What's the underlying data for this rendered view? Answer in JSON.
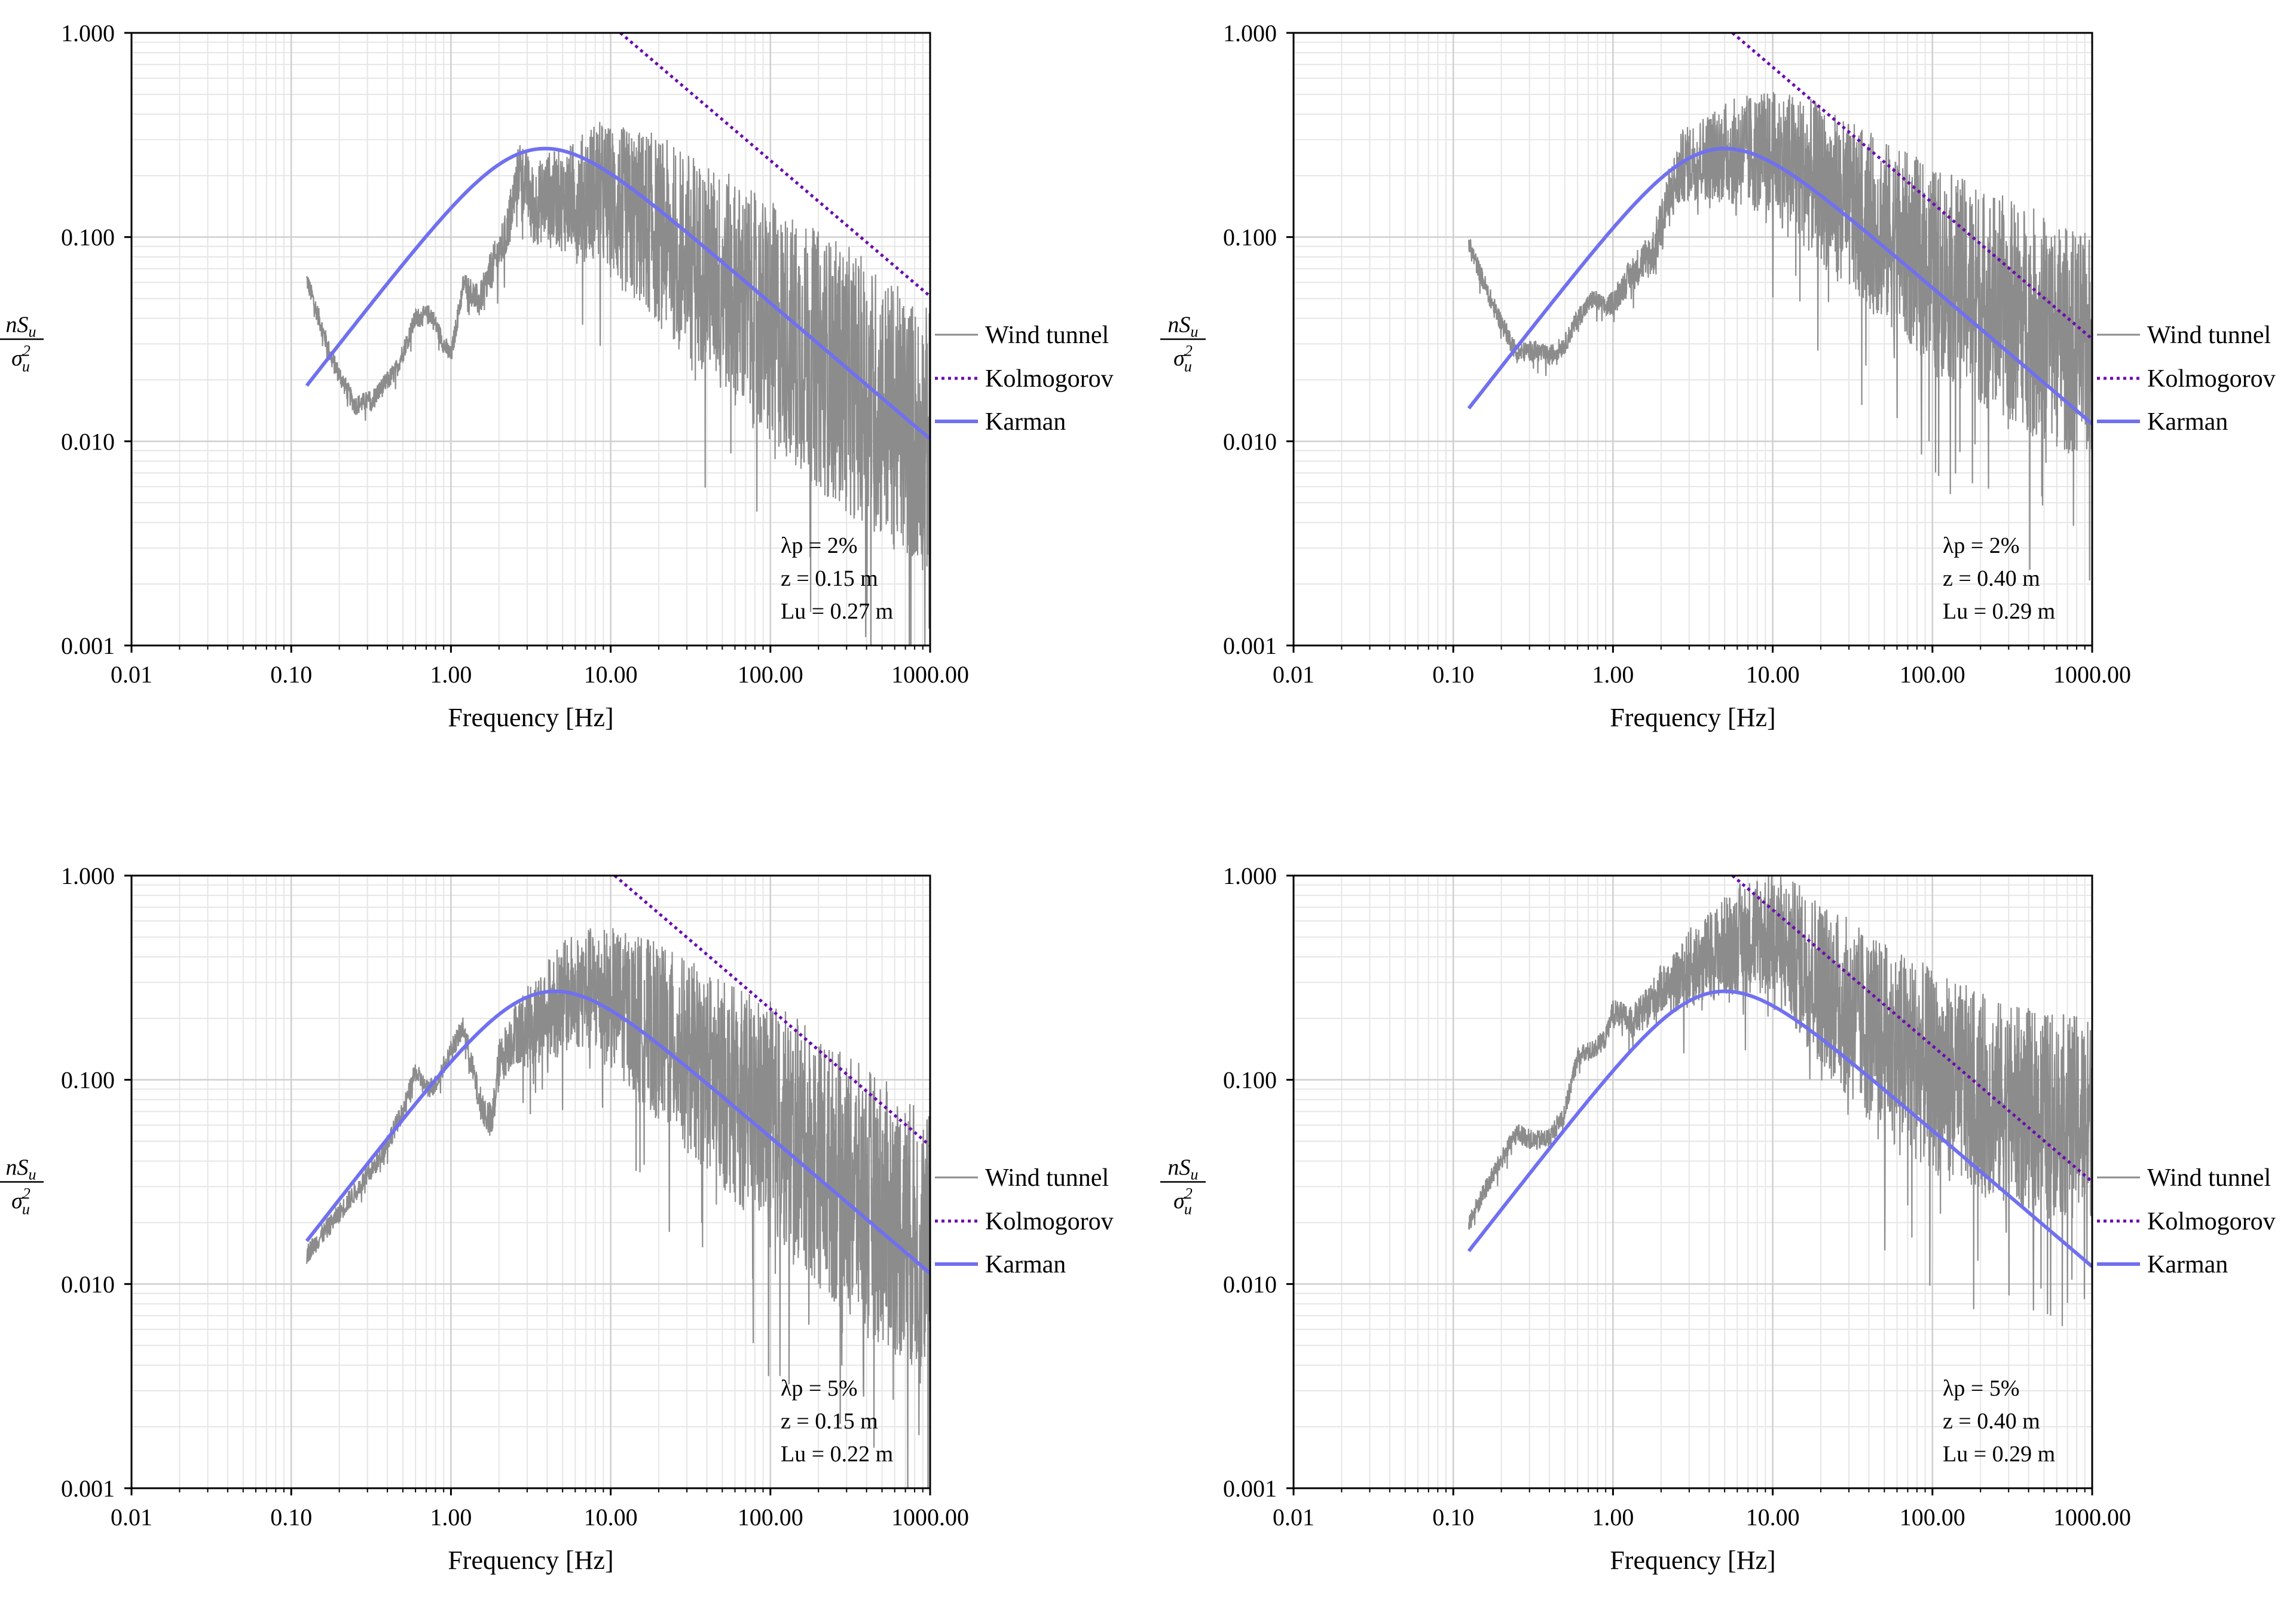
{
  "figure": {
    "colors": {
      "wind_tunnel": "#8c8c8c",
      "kolmogorov": "#6a0dad",
      "karman": "#7070f0",
      "grid": "#e6e6e6",
      "axis": "#000000"
    },
    "shared": {
      "xlabel": "Frequency [Hz]",
      "ylabel": {
        "numerator_n": "n",
        "numerator_S": "S",
        "numerator_sub": "u",
        "denominator_sigma": "σ",
        "denominator_sup": "2",
        "denominator_sub": "u"
      },
      "x_ticks": [
        "0.01",
        "0.10",
        "1.00",
        "10.00",
        "100.00",
        "1000.00"
      ],
      "y_ticks": [
        "0.001",
        "0.010",
        "0.100",
        "1.000"
      ],
      "legend": [
        "Wind tunnel",
        "Kolmogorov",
        "Karman"
      ]
    }
  },
  "chart_data": [
    {
      "type": "line",
      "scale": "log-log",
      "xlabel": "Frequency [Hz]",
      "ylabel": "nSu/σu²",
      "xlim": [
        0.01,
        1000
      ],
      "ylim": [
        0.001,
        1
      ],
      "annotation": [
        "λp = 2%",
        "z = 0.15 m",
        "Lu = 0.27 m"
      ],
      "legend_position": "right",
      "series": [
        {
          "name": "Wind tunnel",
          "style": "solid-grey-noisy",
          "x": [
            0.125,
            0.18,
            0.25,
            0.32,
            0.45,
            0.6,
            0.75,
            0.9,
            1.0,
            1.2,
            1.5,
            1.8,
            2.2,
            2.7,
            3.3,
            4,
            5,
            6.5,
            8,
            10,
            13,
            17,
            22,
            30,
            40,
            55,
            75,
            100,
            150,
            200,
            300,
            450,
            600,
            800,
            1000
          ],
          "y": [
            0.062,
            0.025,
            0.015,
            0.016,
            0.022,
            0.04,
            0.042,
            0.03,
            0.026,
            0.06,
            0.048,
            0.07,
            0.1,
            0.22,
            0.14,
            0.16,
            0.15,
            0.16,
            0.17,
            0.15,
            0.13,
            0.12,
            0.1,
            0.085,
            0.07,
            0.058,
            0.045,
            0.038,
            0.03,
            0.025,
            0.02,
            0.016,
            0.013,
            0.011,
            0.01
          ],
          "spread": [
            0.05,
            0.05,
            0.05,
            0.05,
            0.05,
            0.05,
            0.05,
            0.05,
            0.05,
            0.06,
            0.08,
            0.1,
            0.12,
            0.15,
            0.2,
            0.22,
            0.25,
            0.3,
            0.35,
            0.38,
            0.42,
            0.45,
            0.48,
            0.5,
            0.52,
            0.55,
            0.58,
            0.6,
            0.62,
            0.64,
            0.66,
            0.66,
            0.66,
            0.66,
            0.66
          ]
        },
        {
          "name": "Kolmogorov",
          "style": "dotted",
          "x": [
            11.5,
            1000
          ],
          "y": [
            1.0,
            0.0513
          ]
        },
        {
          "name": "Karman",
          "style": "solid",
          "Lu_over_U": 0.0375,
          "x_range": [
            0.125,
            1000
          ]
        }
      ]
    },
    {
      "type": "line",
      "scale": "log-log",
      "xlabel": "Frequency [Hz]",
      "ylabel": "nSu/σu²",
      "xlim": [
        0.01,
        1000
      ],
      "ylim": [
        0.001,
        1
      ],
      "annotation": [
        "λp = 2%",
        "z = 0.40 m",
        "Lu = 0.29 m"
      ],
      "legend_position": "right",
      "series": [
        {
          "name": "Wind tunnel",
          "style": "solid-grey-noisy",
          "x": [
            0.125,
            0.18,
            0.25,
            0.32,
            0.4,
            0.5,
            0.6,
            0.75,
            0.9,
            1.0,
            1.2,
            1.5,
            1.8,
            2.2,
            2.7,
            3.3,
            4,
            5,
            6.5,
            8,
            10,
            13,
            17,
            22,
            30,
            40,
            55,
            75,
            100,
            150,
            200,
            300,
            450,
            600,
            800,
            1000
          ],
          "y": [
            0.092,
            0.045,
            0.027,
            0.028,
            0.026,
            0.03,
            0.04,
            0.05,
            0.045,
            0.048,
            0.06,
            0.075,
            0.085,
            0.15,
            0.22,
            0.24,
            0.25,
            0.26,
            0.26,
            0.26,
            0.25,
            0.23,
            0.2,
            0.17,
            0.14,
            0.12,
            0.1,
            0.085,
            0.07,
            0.06,
            0.052,
            0.044,
            0.038,
            0.033,
            0.03,
            0.028
          ],
          "spread": [
            0.05,
            0.05,
            0.05,
            0.05,
            0.05,
            0.05,
            0.05,
            0.05,
            0.05,
            0.06,
            0.08,
            0.1,
            0.12,
            0.15,
            0.18,
            0.2,
            0.22,
            0.25,
            0.28,
            0.3,
            0.32,
            0.35,
            0.38,
            0.4,
            0.42,
            0.44,
            0.46,
            0.48,
            0.5,
            0.52,
            0.54,
            0.55,
            0.56,
            0.56,
            0.56,
            0.56
          ]
        },
        {
          "name": "Kolmogorov",
          "style": "dotted",
          "x": [
            5.6,
            1000
          ],
          "y": [
            1.0,
            0.0317
          ]
        },
        {
          "name": "Karman",
          "style": "solid",
          "Lu_over_U": 0.029,
          "x_range": [
            0.125,
            1000
          ]
        }
      ]
    },
    {
      "type": "line",
      "scale": "log-log",
      "xlabel": "Frequency [Hz]",
      "ylabel": "nSu/σu²",
      "xlim": [
        0.01,
        1000
      ],
      "ylim": [
        0.001,
        1
      ],
      "annotation": [
        "λp = 5%",
        "z = 0.15 m",
        "Lu = 0.22 m"
      ],
      "legend_position": "right",
      "series": [
        {
          "name": "Wind tunnel",
          "style": "solid-grey-noisy",
          "x": [
            0.125,
            0.18,
            0.25,
            0.35,
            0.5,
            0.6,
            0.7,
            0.8,
            1.0,
            1.2,
            1.5,
            1.8,
            2.0,
            2.5,
            3.0,
            4,
            5,
            6.5,
            8,
            10,
            13,
            17,
            22,
            30,
            40,
            55,
            75,
            100,
            150,
            200,
            300,
            450,
            600,
            800,
            1000
          ],
          "y": [
            0.014,
            0.02,
            0.028,
            0.04,
            0.07,
            0.11,
            0.09,
            0.095,
            0.14,
            0.18,
            0.08,
            0.06,
            0.12,
            0.17,
            0.18,
            0.22,
            0.25,
            0.28,
            0.27,
            0.25,
            0.22,
            0.19,
            0.16,
            0.13,
            0.11,
            0.09,
            0.075,
            0.065,
            0.05,
            0.04,
            0.03,
            0.024,
            0.02,
            0.017,
            0.015
          ],
          "spread": [
            0.05,
            0.05,
            0.05,
            0.05,
            0.05,
            0.05,
            0.05,
            0.05,
            0.05,
            0.06,
            0.08,
            0.1,
            0.12,
            0.15,
            0.2,
            0.25,
            0.28,
            0.3,
            0.32,
            0.35,
            0.38,
            0.42,
            0.45,
            0.48,
            0.5,
            0.52,
            0.55,
            0.58,
            0.6,
            0.62,
            0.64,
            0.66,
            0.66,
            0.66,
            0.66
          ]
        },
        {
          "name": "Kolmogorov",
          "style": "dotted",
          "x": [
            10.6,
            1000
          ],
          "y": [
            1.0,
            0.0476
          ]
        },
        {
          "name": "Karman",
          "style": "solid",
          "Lu_over_U": 0.0325,
          "x_range": [
            0.125,
            1000
          ]
        }
      ]
    },
    {
      "type": "line",
      "scale": "log-log",
      "xlabel": "Frequency [Hz]",
      "ylabel": "nSu/σu²",
      "xlim": [
        0.01,
        1000
      ],
      "ylim": [
        0.001,
        1
      ],
      "annotation": [
        "λp = 5%",
        "z = 0.40 m",
        "Lu = 0.29 m"
      ],
      "legend_position": "right",
      "series": [
        {
          "name": "Wind tunnel",
          "style": "solid-grey-noisy",
          "x": [
            0.125,
            0.18,
            0.25,
            0.32,
            0.4,
            0.5,
            0.6,
            0.75,
            0.9,
            1.0,
            1.3,
            1.6,
            2.0,
            2.5,
            3.0,
            4,
            5,
            6.5,
            8,
            10,
            13,
            17,
            22,
            30,
            40,
            55,
            75,
            100,
            150,
            200,
            300,
            450,
            600,
            800,
            1000
          ],
          "y": [
            0.02,
            0.035,
            0.055,
            0.05,
            0.052,
            0.07,
            0.13,
            0.14,
            0.16,
            0.22,
            0.19,
            0.22,
            0.28,
            0.3,
            0.35,
            0.4,
            0.45,
            0.5,
            0.52,
            0.5,
            0.42,
            0.35,
            0.28,
            0.22,
            0.18,
            0.15,
            0.13,
            0.11,
            0.095,
            0.085,
            0.075,
            0.07,
            0.068,
            0.066,
            0.065
          ],
          "spread": [
            0.05,
            0.05,
            0.05,
            0.05,
            0.05,
            0.05,
            0.05,
            0.05,
            0.05,
            0.06,
            0.08,
            0.1,
            0.12,
            0.15,
            0.2,
            0.22,
            0.25,
            0.28,
            0.3,
            0.33,
            0.36,
            0.4,
            0.42,
            0.45,
            0.47,
            0.48,
            0.5,
            0.5,
            0.5,
            0.5,
            0.5,
            0.5,
            0.5,
            0.5,
            0.5
          ]
        },
        {
          "name": "Kolmogorov",
          "style": "dotted",
          "x": [
            5.6,
            1000
          ],
          "y": [
            1.0,
            0.0317
          ]
        },
        {
          "name": "Karman",
          "style": "solid",
          "Lu_over_U": 0.029,
          "x_range": [
            0.125,
            1000
          ]
        }
      ]
    }
  ]
}
